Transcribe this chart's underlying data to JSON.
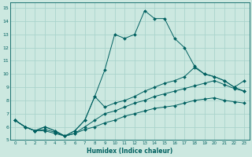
{
  "xlabel": "Humidex (Indice chaleur)",
  "bg_color": "#cce8e0",
  "grid_color": "#aad4cc",
  "line_color": "#006060",
  "xlim": [
    -0.5,
    23.5
  ],
  "ylim": [
    5,
    15.4
  ],
  "xticks": [
    0,
    1,
    2,
    3,
    4,
    5,
    6,
    7,
    8,
    9,
    10,
    11,
    12,
    13,
    14,
    15,
    16,
    17,
    18,
    19,
    20,
    21,
    22,
    23
  ],
  "yticks": [
    5,
    6,
    7,
    8,
    9,
    10,
    11,
    12,
    13,
    14,
    15
  ],
  "series": [
    {
      "x": [
        0,
        1,
        2,
        3,
        4,
        5,
        6,
        7,
        8,
        9,
        10,
        11,
        12,
        13,
        14,
        15,
        16,
        17,
        18,
        19,
        20,
        21,
        22,
        23
      ],
      "y": [
        6.5,
        6.0,
        5.7,
        6.0,
        5.7,
        5.3,
        5.7,
        6.5,
        8.3,
        10.3,
        13.0,
        12.7,
        13.0,
        14.8,
        14.2,
        14.2,
        12.7,
        12.0,
        10.6,
        10.0,
        9.8,
        9.5,
        9.0,
        8.7
      ]
    },
    {
      "x": [
        0,
        1,
        2,
        3,
        4,
        5,
        6,
        7,
        8,
        9,
        10,
        11,
        12,
        13,
        14,
        15,
        16,
        17,
        18,
        19,
        20,
        21,
        22,
        23
      ],
      "y": [
        6.5,
        6.0,
        5.7,
        6.0,
        5.7,
        5.3,
        5.7,
        6.5,
        8.3,
        7.5,
        7.8,
        8.0,
        8.3,
        8.7,
        9.0,
        9.3,
        9.5,
        9.8,
        10.5,
        10.0,
        9.8,
        9.5,
        9.0,
        9.5
      ]
    },
    {
      "x": [
        0,
        1,
        2,
        3,
        4,
        5,
        6,
        7,
        8,
        9,
        10,
        11,
        12,
        13,
        14,
        15,
        16,
        17,
        18,
        19,
        20,
        21,
        22,
        23
      ],
      "y": [
        6.5,
        6.0,
        5.7,
        5.8,
        5.6,
        5.3,
        5.5,
        6.0,
        6.5,
        7.0,
        7.2,
        7.5,
        7.8,
        8.0,
        8.3,
        8.5,
        8.7,
        8.9,
        9.1,
        9.3,
        9.5,
        9.2,
        8.9,
        8.7
      ]
    },
    {
      "x": [
        0,
        1,
        2,
        3,
        4,
        5,
        6,
        7,
        8,
        9,
        10,
        11,
        12,
        13,
        14,
        15,
        16,
        17,
        18,
        19,
        20,
        21,
        22,
        23
      ],
      "y": [
        6.5,
        6.0,
        5.7,
        5.7,
        5.5,
        5.3,
        5.5,
        5.8,
        6.0,
        6.3,
        6.5,
        6.8,
        7.0,
        7.2,
        7.4,
        7.5,
        7.6,
        7.8,
        8.0,
        8.1,
        8.2,
        8.0,
        7.9,
        7.8
      ]
    }
  ]
}
